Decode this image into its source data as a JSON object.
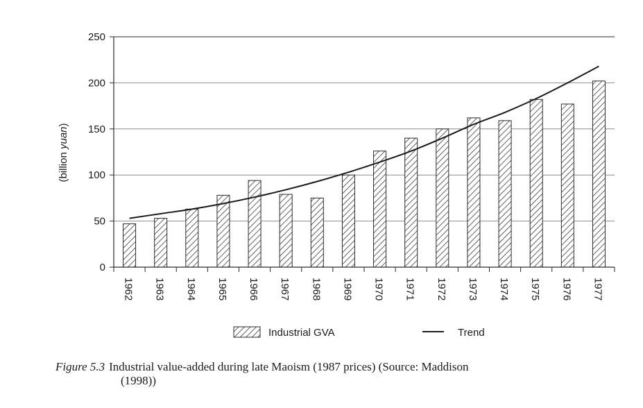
{
  "chart_data": {
    "type": "bar",
    "categories": [
      "1962",
      "1963",
      "1964",
      "1965",
      "1966",
      "1967",
      "1968",
      "1969",
      "1970",
      "1971",
      "1972",
      "1973",
      "1974",
      "1975",
      "1976",
      "1977"
    ],
    "series": [
      {
        "name": "Industrial GVA",
        "kind": "bar",
        "values": [
          47,
          53,
          63,
          78,
          94,
          79,
          75,
          100,
          126,
          140,
          150,
          162,
          159,
          182,
          177,
          202
        ]
      },
      {
        "name": "Trend",
        "kind": "line",
        "values": [
          53,
          58,
          63,
          69,
          76,
          84,
          93,
          103,
          114,
          126,
          140,
          155,
          168,
          183,
          200,
          218
        ]
      }
    ],
    "yticks": [
      "0",
      "50",
      "100",
      "150",
      "200",
      "250"
    ],
    "ylim": [
      0,
      250
    ],
    "ylabel": "(billion yuan)",
    "ylabel_plain": "(billion ",
    "ylabel_italic": "yuan",
    "ylabel_close": ")",
    "xlabel": "",
    "grid": true,
    "legend_position": "bottom-center",
    "legend": [
      {
        "label": "Industrial GVA",
        "swatch": "hatched-bar"
      },
      {
        "label": "Trend",
        "swatch": "line"
      }
    ],
    "colors": {
      "bar_stroke": "#2a2a2a",
      "hatch": "#3a3a3a",
      "trend": "#1a1a1a",
      "grid": "#8c8c8c",
      "axis": "#2a2a2a"
    }
  },
  "caption": {
    "figure_label": "Figure 5.3",
    "text_line1": "Industrial value-added during late Maoism (1987 prices) (Source: Maddison",
    "text_line2": "(1998))"
  }
}
